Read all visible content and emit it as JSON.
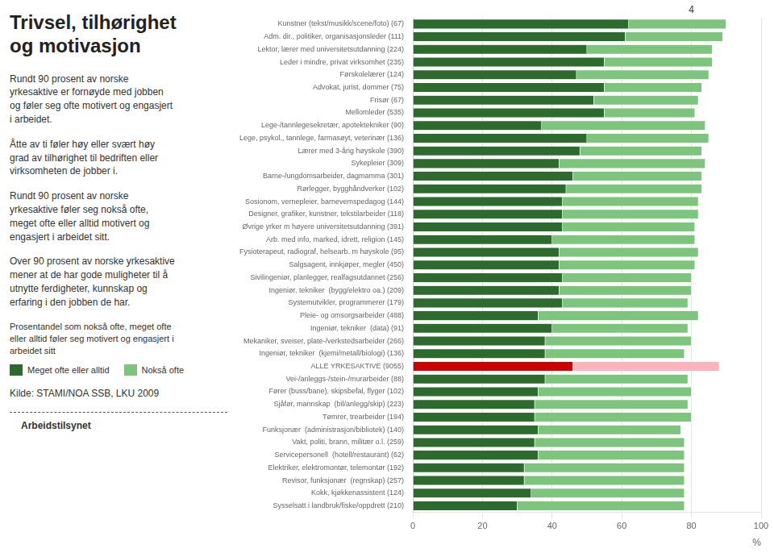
{
  "chart_data": {
    "type": "bar",
    "orientation": "horizontal",
    "stacked": true,
    "title": "Trivsel, tilhørighet\nog motivasjon",
    "categories": [
      "Kunstner (tekst/musikk/scene/foto) (67)",
      "Adm. dir., politiker, organisasjonsleder (111)",
      "Lektor, lærer med universitetsutdanning (224)",
      "Leder i mindre, privat virksomhet (235)",
      "Førskolelærer (124)",
      "Advokat, jurist, dommer (75)",
      "Frisør (67)",
      "Mellomleder (535)",
      "Lege-/tannlegesekretær, apotektekniker (90)",
      "Lege, psykol., tannlege, farmasøyt, veterinær (136)",
      "Lærer med 3-årig høyskole (390)",
      "Sykepleier (309)",
      "Barne-/ungdomsarbeider, dagmamma (301)",
      "Rørlegger, bygghåndverker (102)",
      "Sosionom, vernepleier, barnevemspedagog (144)",
      "Designer, grafiker, kunstner, tekstilarbeider (118)",
      "Øvrige yrker m høyere universitetsutdanning (391)",
      "Arb. med info, marked, idrett, religion (145)",
      "Fysioterapeut, radiograf, helsearb. m høyskole (95)",
      "Salgsagent, innkjøper, megler (450)",
      "Sivilingeniør, planlegger, realfagsutdannet (256)",
      "Ingeniør, tekniker  (bygg/elektro oa.) (209)",
      "Systemutvikler, programmerer (179)",
      "Pleie- og omsorgsarbeider (488)",
      "Ingeniør, tekniker  (data) (91)",
      "Mekaniker, sveiser, plate-/verkstedsarbeider (266)",
      "Ingeniør, tekniker  (kjemi/metall/biologi) (136)",
      "ALLE YRKESAKTIVE (9055)",
      "Vei-/anleggs-/stein-/murarbeider (88)",
      "Fører (buss/bane), skipsbefal, flyger (102)",
      "Sjåfør, mannskap  (bil/anlegg/skip) (223)",
      "Tømrer, trearbeider (194)",
      "Funksjonær  (administrasjon/bibliotek) (140)",
      "Vakt, politi, brann, militær o.l. (259)",
      "Servicepersonell  (hotell/restaurant) (62)",
      "Elektriker, elektromontør, telemontør (192)",
      "Revisor, funksjonær  (regnskap) (257)",
      "Kokk, kjøkkenassistent (124)",
      "Sysselsatt i landbruk/fiske/oppdrett (210)"
    ],
    "series": [
      {
        "name": "Meget ofte eller alltid",
        "color": "#2d6a2d",
        "colors": [
          "#2d6a2d",
          "#2d6a2d",
          "#2d6a2d",
          "#2d6a2d",
          "#2d6a2d",
          "#2d6a2d",
          "#2d6a2d",
          "#2d6a2d",
          "#2d6a2d",
          "#2d6a2d",
          "#2d6a2d",
          "#2d6a2d",
          "#2d6a2d",
          "#2d6a2d",
          "#2d6a2d",
          "#2d6a2d",
          "#2d6a2d",
          "#2d6a2d",
          "#2d6a2d",
          "#2d6a2d",
          "#2d6a2d",
          "#2d6a2d",
          "#2d6a2d",
          "#2d6a2d",
          "#2d6a2d",
          "#2d6a2d",
          "#2d6a2d",
          "#cc0000",
          "#2d6a2d",
          "#2d6a2d",
          "#2d6a2d",
          "#2d6a2d",
          "#2d6a2d",
          "#2d6a2d",
          "#2d6a2d",
          "#2d6a2d",
          "#2d6a2d",
          "#2d6a2d",
          "#2d6a2d"
        ],
        "values": [
          62,
          61,
          50,
          55,
          47,
          55,
          52,
          55,
          37,
          50,
          48,
          42,
          46,
          44,
          43,
          43,
          43,
          40,
          42,
          42,
          43,
          42,
          43,
          36,
          40,
          38,
          38,
          46,
          38,
          36,
          35,
          35,
          36,
          35,
          36,
          32,
          32,
          34,
          30
        ]
      },
      {
        "name": "Nokså ofte",
        "color": "#7dc47d",
        "colors": [
          "#7dc47d",
          "#7dc47d",
          "#7dc47d",
          "#7dc47d",
          "#7dc47d",
          "#7dc47d",
          "#7dc47d",
          "#7dc47d",
          "#7dc47d",
          "#7dc47d",
          "#7dc47d",
          "#7dc47d",
          "#7dc47d",
          "#7dc47d",
          "#7dc47d",
          "#7dc47d",
          "#7dc47d",
          "#7dc47d",
          "#7dc47d",
          "#7dc47d",
          "#7dc47d",
          "#7dc47d",
          "#7dc47d",
          "#7dc47d",
          "#7dc47d",
          "#7dc47d",
          "#7dc47d",
          "#ffb3ba",
          "#7dc47d",
          "#7dc47d",
          "#7dc47d",
          "#7dc47d",
          "#7dc47d",
          "#7dc47d",
          "#7dc47d",
          "#7dc47d",
          "#7dc47d",
          "#7dc47d",
          "#7dc47d"
        ],
        "values": [
          28,
          28,
          36,
          31,
          38,
          28,
          30,
          26,
          47,
          35,
          35,
          42,
          37,
          39,
          39,
          39,
          38,
          41,
          40,
          39,
          37,
          38,
          36,
          46,
          39,
          42,
          40,
          42,
          41,
          44,
          44,
          45,
          41,
          43,
          42,
          46,
          46,
          44,
          48
        ]
      }
    ],
    "xlim": [
      0,
      100
    ],
    "xticks": [
      0,
      20,
      40,
      60,
      80,
      100
    ],
    "xlabel": "%",
    "grid": true,
    "legend": "lower left",
    "annotations": [
      {
        "text": "Rundt 90 prosent av norske\nyrkesaktive er fornøyde med jobben\nog føler seg ofte motivert og engasjert\ni arbeidet."
      },
      {
        "text": "Åtte av ti føler høy eller svært høy\ngrad av tilhørighet til bedriften eller\nvirksomheten de jobber i."
      },
      {
        "text": "Rundt 90 prosent av norske\nyrkesaktive føler seg nokså ofte,\nmeget ofte eller alltid motivert og\nengasjert i arbeidet sitt."
      },
      {
        "text": "Over 90 prosent av norske yrkesaktive\nmener at de har gode muligheter til å\nutnytte ferdigheter, kunnskap og\nerfaring i den jobben de har."
      },
      {
        "text": "Prosentandel som nokså ofte, meget ofte\neller alltid føler seg motivert og engasjert i\narbeidet sitt"
      },
      {
        "text": "Kilde: STAMI/NOA SSB, LKU 2009"
      },
      {
        "text": "Arbeidstilsynet"
      },
      {
        "text": "4",
        "x": 80
      }
    ]
  }
}
